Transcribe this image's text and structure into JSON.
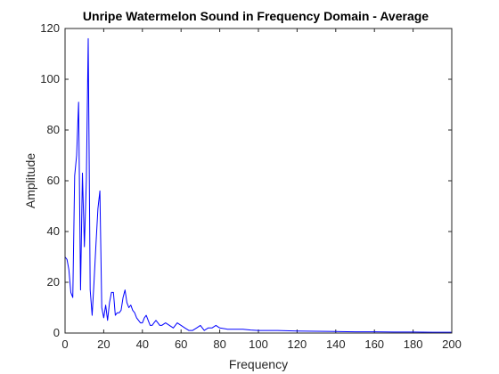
{
  "chart_data": {
    "type": "line",
    "title": "Unripe Watermelon Sound in Frequency Domain - Average",
    "xlabel": "Frequency",
    "ylabel": "Amplitude",
    "xlim": [
      0,
      200
    ],
    "ylim": [
      0,
      120
    ],
    "xticks": [
      0,
      20,
      40,
      60,
      80,
      100,
      120,
      140,
      160,
      180,
      200
    ],
    "yticks": [
      0,
      20,
      40,
      60,
      80,
      100,
      120
    ],
    "grid": false,
    "series": [
      {
        "color": "#0000ff",
        "x": [
          0,
          1,
          2,
          3,
          4,
          5,
          6,
          7,
          8,
          9,
          10,
          11,
          12,
          13,
          14,
          15,
          16,
          17,
          18,
          19,
          20,
          21,
          22,
          23,
          24,
          25,
          26,
          27,
          28,
          29,
          30,
          31,
          32,
          33,
          34,
          35,
          36,
          37,
          38,
          39,
          40,
          41,
          42,
          43,
          44,
          45,
          46,
          47,
          48,
          49,
          50,
          52,
          54,
          56,
          58,
          60,
          62,
          64,
          66,
          68,
          70,
          72,
          74,
          76,
          78,
          80,
          84,
          88,
          92,
          96,
          100,
          110,
          120,
          130,
          140,
          150,
          160,
          170,
          180,
          190,
          200
        ],
        "y": [
          30,
          29,
          25,
          16,
          14,
          62,
          70,
          91,
          17,
          63,
          34,
          60,
          116,
          17,
          7,
          20,
          35,
          49,
          56,
          10,
          6,
          11,
          5,
          12,
          16,
          16,
          7,
          8,
          8,
          9,
          14,
          17,
          12,
          10,
          11,
          9,
          8,
          6,
          5,
          4,
          4,
          6,
          7,
          5,
          3,
          3,
          4,
          5,
          4,
          3,
          3,
          4,
          3,
          2,
          4,
          3,
          2,
          1,
          1,
          2,
          3,
          1,
          2,
          2,
          3,
          2,
          1.5,
          1.5,
          1.5,
          1.2,
          1,
          1,
          0.8,
          0.7,
          0.6,
          0.5,
          0.5,
          0.4,
          0.4,
          0.3,
          0.3
        ]
      }
    ]
  }
}
